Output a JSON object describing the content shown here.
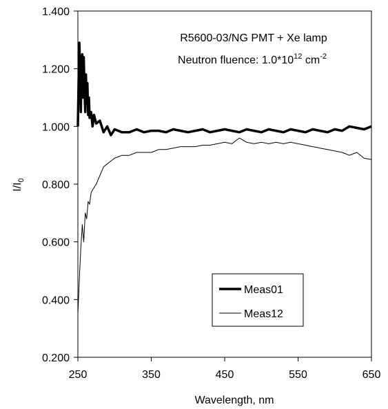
{
  "chart_data": {
    "type": "line",
    "xlabel": "Wavelength, nm",
    "ylabel_main": "I/I",
    "ylabel_sub": "0",
    "xlim": [
      250,
      650
    ],
    "ylim": [
      0.2,
      1.4
    ],
    "x_ticks": [
      250,
      350,
      450,
      550,
      650
    ],
    "x_tick_labels": [
      "250",
      "350",
      "450",
      "550",
      "650"
    ],
    "y_ticks": [
      0.2,
      0.4,
      0.6,
      0.8,
      1.0,
      1.2,
      1.4
    ],
    "y_tick_labels": [
      "0.200",
      "0.400",
      "0.600",
      "0.800",
      "1.000",
      "1.200",
      "1.400"
    ],
    "grid": false,
    "legend_position": "bottom-right",
    "annotations": {
      "line1": "R5600-03/NG PMT + Xe lamp",
      "line2_prefix": "Neutron fluence: 1.0*10",
      "line2_sup1": "12",
      "line2_mid": " cm",
      "line2_sup2": "-2"
    },
    "series": [
      {
        "name": "Meas01",
        "color": "#000000",
        "style": "thick",
        "x": [
          250,
          251,
          252,
          253,
          254,
          255,
          256,
          257,
          258,
          259,
          260,
          261,
          262,
          263,
          264,
          265,
          266,
          268,
          270,
          272,
          275,
          280,
          285,
          290,
          295,
          300,
          310,
          320,
          330,
          340,
          350,
          360,
          370,
          380,
          390,
          400,
          410,
          420,
          430,
          440,
          450,
          460,
          470,
          480,
          490,
          500,
          510,
          520,
          530,
          540,
          550,
          560,
          570,
          580,
          590,
          600,
          610,
          620,
          630,
          640,
          650
        ],
        "y": [
          1.0,
          1.16,
          1.29,
          1.2,
          1.05,
          1.22,
          1.25,
          1.1,
          1.24,
          1.13,
          1.05,
          1.18,
          1.08,
          1.15,
          1.04,
          1.1,
          1.03,
          1.05,
          1.0,
          1.04,
          1.01,
          1.02,
          0.98,
          1.0,
          0.97,
          0.99,
          0.98,
          0.98,
          0.99,
          0.98,
          0.985,
          0.985,
          0.98,
          0.99,
          0.985,
          0.98,
          0.985,
          0.99,
          0.98,
          0.985,
          0.99,
          0.985,
          0.98,
          0.99,
          0.985,
          0.98,
          0.99,
          0.985,
          0.98,
          0.99,
          0.985,
          0.98,
          0.99,
          0.985,
          0.98,
          0.99,
          0.985,
          1.0,
          0.995,
          0.99,
          1.0
        ]
      },
      {
        "name": "Meas12",
        "color": "#000000",
        "style": "thin",
        "x": [
          250,
          252,
          254,
          256,
          258,
          260,
          262,
          264,
          266,
          268,
          270,
          275,
          280,
          285,
          290,
          295,
          300,
          310,
          320,
          330,
          340,
          350,
          360,
          370,
          380,
          390,
          400,
          410,
          420,
          430,
          440,
          450,
          460,
          470,
          480,
          490,
          500,
          510,
          520,
          530,
          540,
          550,
          560,
          570,
          580,
          590,
          600,
          610,
          620,
          630,
          640,
          650
        ],
        "y": [
          0.35,
          0.47,
          0.58,
          0.66,
          0.6,
          0.7,
          0.68,
          0.74,
          0.73,
          0.77,
          0.78,
          0.8,
          0.83,
          0.86,
          0.87,
          0.88,
          0.89,
          0.9,
          0.9,
          0.91,
          0.91,
          0.91,
          0.92,
          0.92,
          0.925,
          0.93,
          0.93,
          0.93,
          0.935,
          0.935,
          0.94,
          0.945,
          0.94,
          0.96,
          0.945,
          0.94,
          0.945,
          0.94,
          0.945,
          0.94,
          0.945,
          0.94,
          0.935,
          0.93,
          0.925,
          0.92,
          0.915,
          0.91,
          0.9,
          0.91,
          0.89,
          0.885
        ]
      }
    ]
  }
}
